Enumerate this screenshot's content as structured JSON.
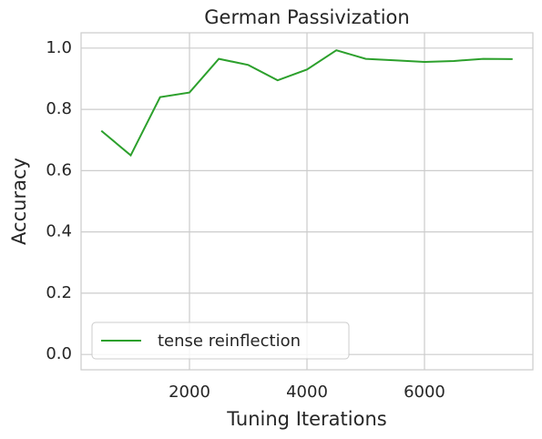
{
  "chart_data": {
    "type": "line",
    "title": "German Passivization",
    "xlabel": "Tuning Iterations",
    "ylabel": "Accuracy",
    "x": [
      500,
      1000,
      1500,
      2000,
      2500,
      3000,
      3500,
      4000,
      4500,
      5000,
      5500,
      6000,
      6500,
      7000,
      7500
    ],
    "series": [
      {
        "name": "tense reinflection",
        "color": "#2ca02c",
        "values": [
          0.73,
          0.65,
          0.84,
          0.855,
          0.965,
          0.945,
          0.895,
          0.93,
          0.993,
          0.965,
          0.96,
          0.955,
          0.958,
          0.965,
          0.964
        ]
      }
    ],
    "xlim": [
      155,
      7845
    ],
    "xticks": [
      2000,
      4000,
      6000
    ],
    "ylim": [
      -0.05,
      1.05
    ],
    "yticks": [
      {
        "value": 0,
        "label": "0.0"
      },
      {
        "value": 0.2,
        "label": "0.2"
      },
      {
        "value": 0.4,
        "label": "0.4"
      },
      {
        "value": 0.6,
        "label": "0.6"
      },
      {
        "value": 0.8,
        "label": "0.8"
      },
      {
        "value": 1.0,
        "label": "1.0"
      }
    ],
    "grid": true,
    "legend": "lower left"
  }
}
